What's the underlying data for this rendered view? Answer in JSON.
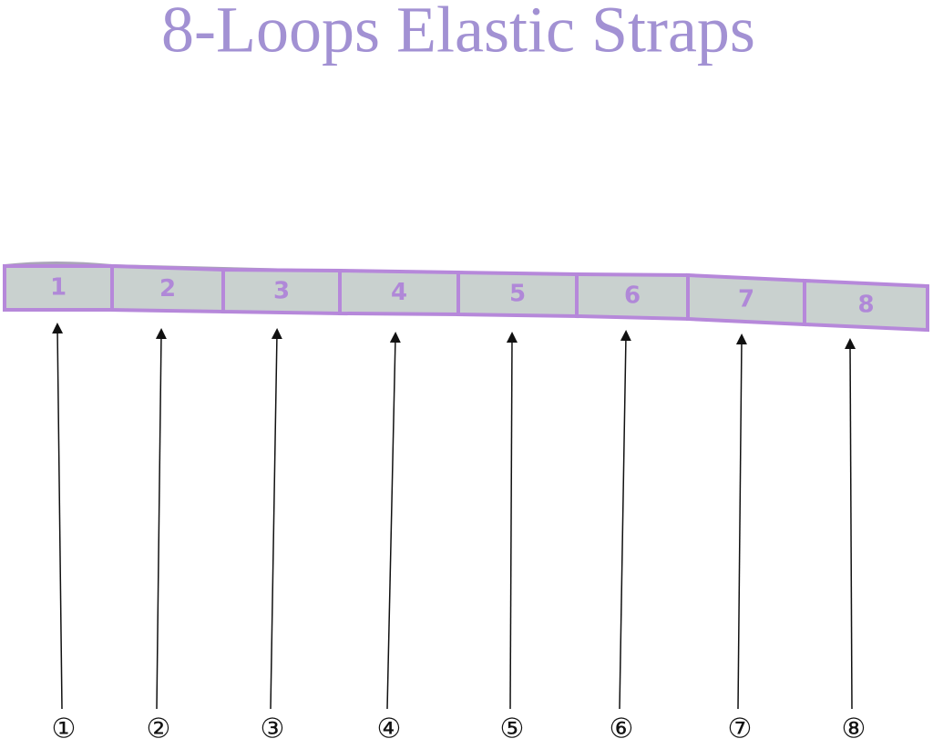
{
  "title": "8-Loops Elastic Straps",
  "loops": [
    "1",
    "2",
    "3",
    "4",
    "5",
    "6",
    "7",
    "8"
  ],
  "markers": [
    "①",
    "②",
    "③",
    "④",
    "⑤",
    "⑥",
    "⑦",
    "⑧"
  ]
}
